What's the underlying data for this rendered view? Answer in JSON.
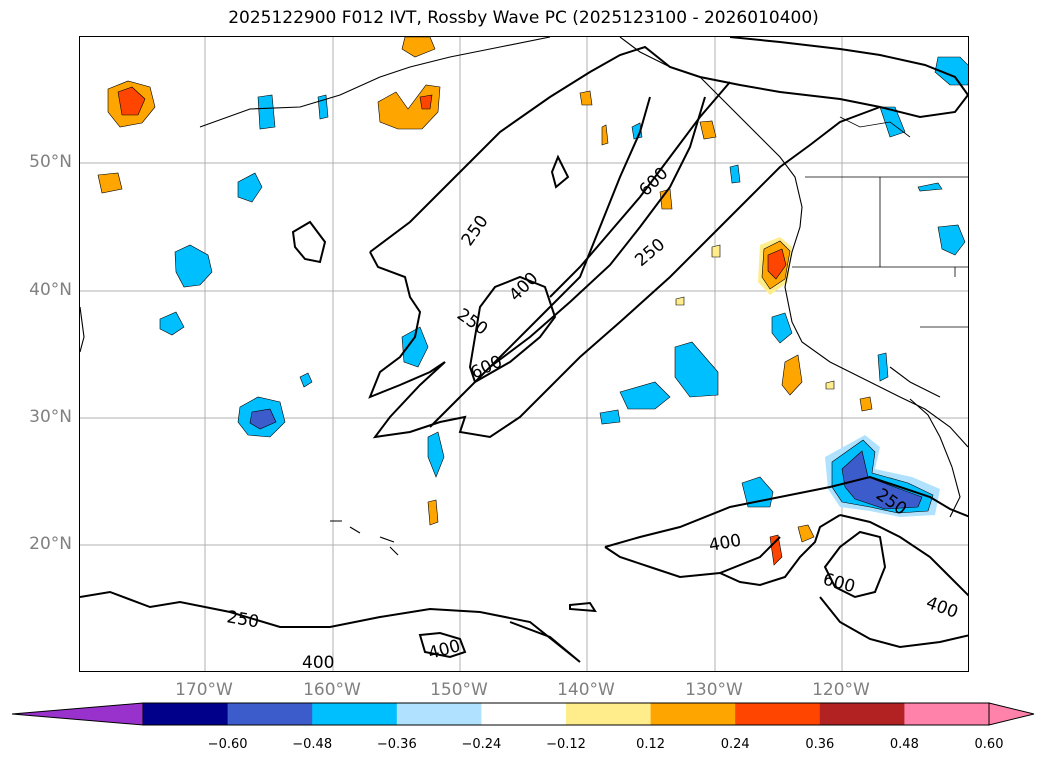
{
  "title": "2025122900 F012 IVT, Rossby Wave PC (2025123100 - 2026010400)",
  "axes": {
    "lat_labels": [
      "50°N",
      "40°N",
      "30°N",
      "20°N"
    ],
    "lon_labels": [
      "170°W",
      "160°W",
      "150°W",
      "140°W",
      "130°W",
      "120°W"
    ]
  },
  "contour_labels": [
    "250",
    "400",
    "600",
    "250",
    "400",
    "600",
    "250",
    "250",
    "400",
    "600",
    "400",
    "250",
    "400"
  ],
  "colorbar": {
    "ticks": [
      "−0.60",
      "−0.48",
      "−0.36",
      "−0.24",
      "−0.12",
      "0.12",
      "0.24",
      "0.36",
      "0.48",
      "0.60"
    ],
    "colors": [
      "#9932cc",
      "#00008b",
      "#3c5ccc",
      "#00bfff",
      "#b0e2ff",
      "#ffffff",
      "#ffec8b",
      "#ffa500",
      "#ff4500",
      "#b22222",
      "#ff82ab"
    ]
  },
  "legend_colors": {
    "neg_strong": "#3c5ccc",
    "neg_mid": "#00bfff",
    "neg_weak": "#b0e2ff",
    "pos_weak": "#ffec8b",
    "pos_mid": "#ffa500",
    "pos_strong": "#ff4500",
    "pos_max": "#b22222"
  }
}
